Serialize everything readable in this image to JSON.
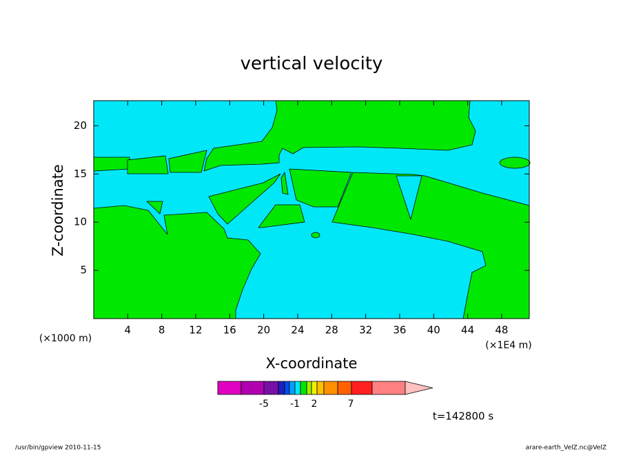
{
  "chart_data": {
    "type": "contour",
    "title": "vertical velocity",
    "x_label": "X-coordinate",
    "y_label": "Z-coordinate",
    "x_units": "(×1E4 m)",
    "y_units": "(×1000 m)",
    "xlim": [
      0,
      51.25
    ],
    "ylim": [
      0,
      22.6
    ],
    "xticks": [
      4,
      8,
      12,
      16,
      20,
      24,
      28,
      32,
      36,
      40,
      44,
      48
    ],
    "yticks": [
      5,
      10,
      15,
      20
    ],
    "colorbar": {
      "colors": [
        "#e000c0",
        "#b000b0",
        "#7810a8",
        "#2020c0",
        "#0050f0",
        "#00a0ff",
        "#00e8f8",
        "#00e800",
        "#a0ee00",
        "#f0f000",
        "#ffc000",
        "#ff9000",
        "#ff6000",
        "#ff2020",
        "#ff8080",
        "#ffc0c0"
      ],
      "ticks": [
        -5,
        -1,
        2,
        7
      ]
    },
    "time_label": "t=142800 s",
    "footer_left": "/usr/bin/gpview   2010-11-15",
    "footer_right": "arare-earth_VelZ.nc@VelZ"
  }
}
